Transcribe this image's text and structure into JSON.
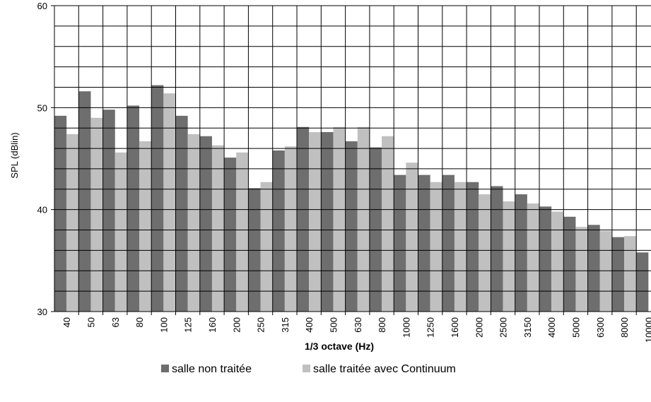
{
  "chart_data": {
    "type": "bar",
    "x_label": "1/3 octave (Hz)",
    "y_label": "SPL (dBlin)",
    "categories": [
      "40",
      "50",
      "63",
      "80",
      "100",
      "125",
      "160",
      "200",
      "250",
      "315",
      "400",
      "500",
      "630",
      "800",
      "1000",
      "1250",
      "1600",
      "2000",
      "2500",
      "3150",
      "4000",
      "5000",
      "6300",
      "8000",
      "10000"
    ],
    "series": [
      {
        "name": "salle non traitée",
        "color": "#6e6e6e",
        "values": [
          49.2,
          51.6,
          49.8,
          50.2,
          52.2,
          49.2,
          47.2,
          45.1,
          42.1,
          45.8,
          48.1,
          47.6,
          46.7,
          46.1,
          43.4,
          43.4,
          43.4,
          42.7,
          42.3,
          41.5,
          40.3,
          39.3,
          38.5,
          37.3,
          35.8
        ]
      },
      {
        "name": "salle traitée avec Continuum",
        "color": "#c0c0c0",
        "values": [
          47.4,
          49.0,
          45.6,
          46.7,
          51.4,
          47.4,
          46.3,
          45.6,
          42.7,
          46.2,
          47.6,
          48.1,
          48.1,
          47.2,
          44.6,
          42.7,
          42.7,
          41.5,
          40.8,
          40.6,
          39.8,
          38.3,
          37.9,
          37.4,
          null
        ]
      }
    ],
    "ylim": [
      30,
      60
    ],
    "yticks": [
      30,
      40,
      50,
      60
    ],
    "minor_yticks": [
      32,
      34,
      36,
      38,
      42,
      44,
      46,
      48,
      52,
      54,
      56,
      58
    ],
    "grid": true
  }
}
